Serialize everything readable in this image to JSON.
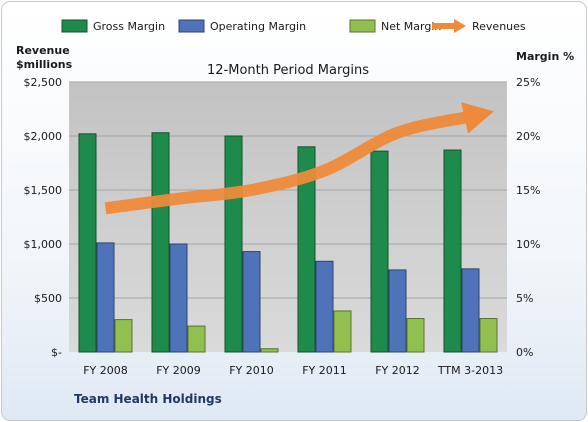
{
  "chart_data": {
    "type": "bar",
    "title": "12-Month Period Margins",
    "company": "Team Health Holdings",
    "categories": [
      "FY 2008",
      "FY 2009",
      "FY 2010",
      "FY 2011",
      "FY 2012",
      "TTM 3-2013"
    ],
    "y_left": {
      "label_line1": "Revenue",
      "label_line2": "$millions",
      "ticks": [
        "$-",
        "$500",
        "$1,000",
        "$1,500",
        "$2,000",
        "$2,500"
      ],
      "range": [
        0,
        2500
      ]
    },
    "y_right": {
      "label": "Margin %",
      "ticks": [
        "0%",
        "5%",
        "10%",
        "15%",
        "20%",
        "25%"
      ],
      "range": [
        0,
        25
      ]
    },
    "series": [
      {
        "name": "Gross Margin",
        "axis": "right",
        "color": "#1e8a4c",
        "values": [
          20.2,
          20.3,
          20.0,
          19.0,
          18.6,
          18.7
        ]
      },
      {
        "name": "Operating Margin",
        "axis": "right",
        "color": "#4e73b9",
        "values": [
          10.1,
          10.0,
          9.3,
          8.4,
          7.6,
          7.7
        ]
      },
      {
        "name": "Net Margin",
        "axis": "right",
        "color": "#92c050",
        "values": [
          3.0,
          2.4,
          0.3,
          3.8,
          3.1,
          3.1
        ]
      },
      {
        "name": "Revenues",
        "axis": "left",
        "type": "line-arrow",
        "color": "#ee8a3a",
        "values": [
          1330,
          1420,
          1500,
          1680,
          2030,
          2180
        ]
      }
    ],
    "grid": true,
    "legend_position": "top"
  }
}
